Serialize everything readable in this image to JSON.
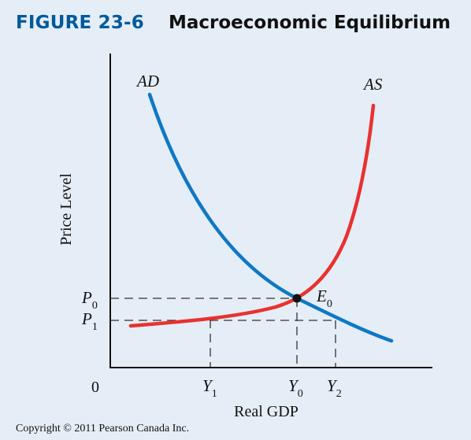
{
  "header": {
    "figure_number": "FIGURE 23-6",
    "title": "Macroeconomic Equilibrium"
  },
  "axes": {
    "y_label": "Price Level",
    "x_label": "Real GDP",
    "origin": "0"
  },
  "curves": {
    "ad": {
      "label": "AD",
      "color": "#0f78c4"
    },
    "as": {
      "label": "AS",
      "color": "#e8322f"
    }
  },
  "price_levels": [
    {
      "label": "P",
      "subscript": "0"
    },
    {
      "label": "P",
      "subscript": "1"
    }
  ],
  "output_levels": [
    {
      "label": "Y",
      "subscript": "1"
    },
    {
      "label": "Y",
      "subscript": "0"
    },
    {
      "label": "Y",
      "subscript": "2"
    }
  ],
  "equilibrium": {
    "label": "E",
    "subscript": "0"
  },
  "footer": {
    "copyright": "Copyright © 2011 Pearson Canada Inc."
  }
}
